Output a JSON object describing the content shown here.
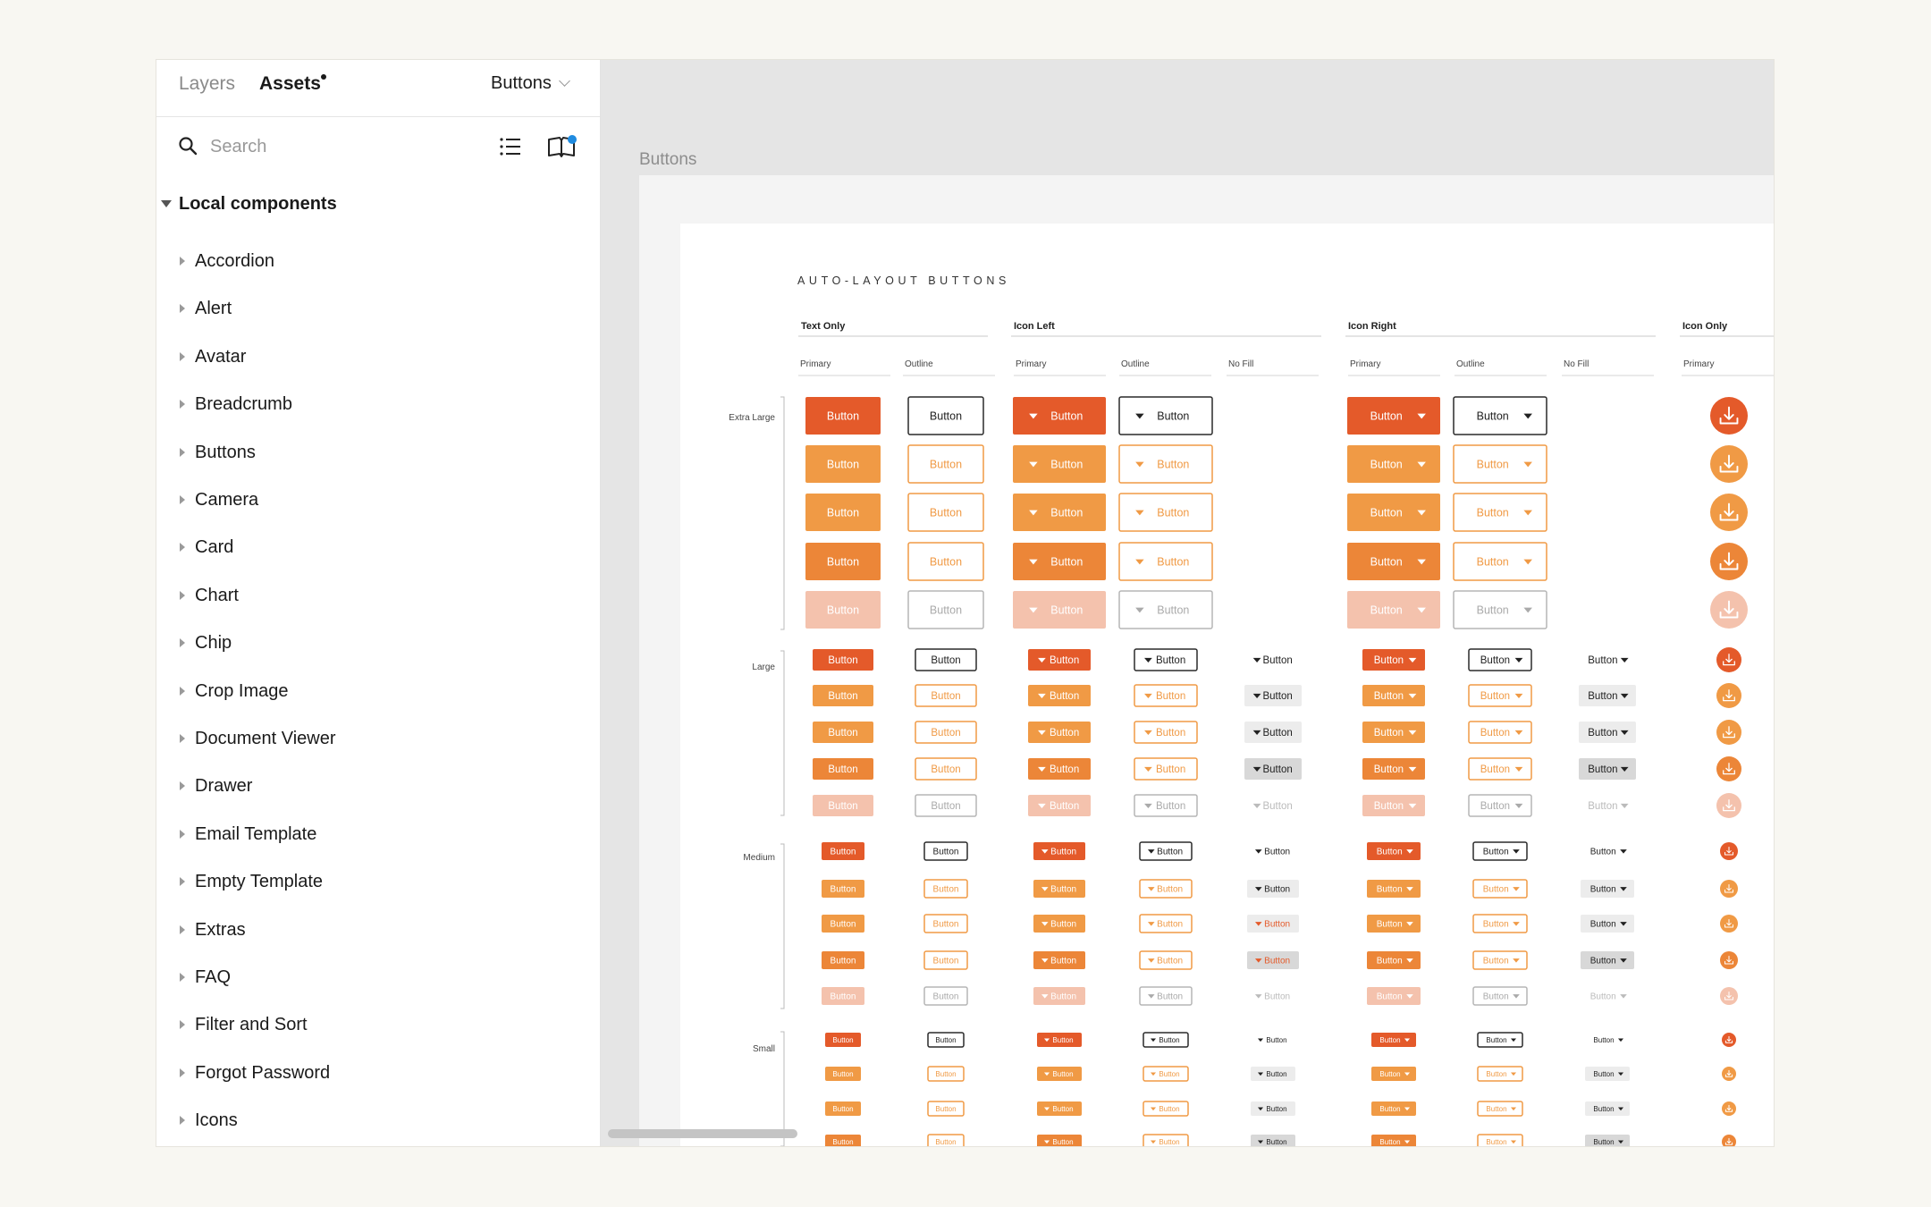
{
  "tabs": {
    "layers": "Layers",
    "assets": "Assets"
  },
  "page_select": {
    "label": "Buttons"
  },
  "search": {
    "placeholder": "Search"
  },
  "section": {
    "title": "Local components"
  },
  "components": [
    "Accordion",
    "Alert",
    "Avatar",
    "Breadcrumb",
    "Buttons",
    "Camera",
    "Card",
    "Chart",
    "Chip",
    "Crop Image",
    "Document Viewer",
    "Drawer",
    "Email Template",
    "Empty Template",
    "Extras",
    "FAQ",
    "Filter and Sort",
    "Forgot Password",
    "Icons"
  ],
  "frame": {
    "label": "Buttons"
  },
  "sheet": {
    "title": "AUTO-LAYOUT BUTTONS",
    "groups": [
      "Text Only",
      "Icon Left",
      "Icon Right",
      "Icon Only"
    ],
    "subgroups": [
      "Primary",
      "Outline",
      "Primary",
      "Outline",
      "No Fill",
      "Primary",
      "Outline",
      "No Fill",
      "Primary"
    ],
    "sizes": [
      "Extra Large",
      "Large",
      "Medium",
      "Small"
    ],
    "button_label": "Button"
  },
  "colors": {
    "primary_default": "#e45a2a",
    "primary_variant": "#f09a45",
    "primary_pressed": "#ec8638",
    "disabled_fill": "#f4c2ad",
    "outline_dark": "#2a2a2a",
    "nofill_bg": "#ececec",
    "nofill_pressed": "#d8d8d8",
    "accent_blue": "#1f8be0"
  }
}
